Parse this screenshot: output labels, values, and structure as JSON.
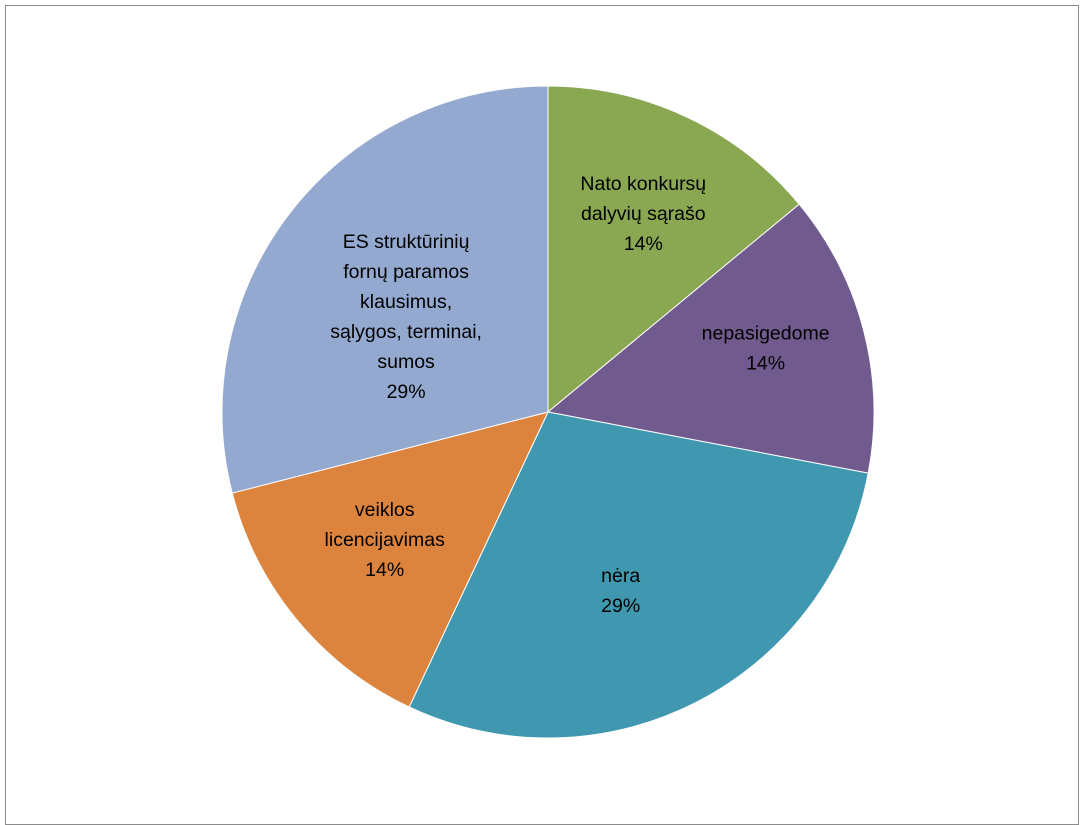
{
  "chart_data": {
    "type": "pie",
    "title": "",
    "start_angle_deg": 0,
    "direction": "clockwise",
    "slices": [
      {
        "label_lines": [
          "Nato konkursų",
          "dalyvių sąrašo",
          "14%"
        ],
        "value": 14,
        "color": "#8aa752"
      },
      {
        "label_lines": [
          "nepasigedome",
          "14%"
        ],
        "value": 14,
        "color": "#715a8e"
      },
      {
        "label_lines": [
          "nėra",
          "29%"
        ],
        "value": 29,
        "color": "#4098b0"
      },
      {
        "label_lines": [
          "veiklos",
          "licencijavimas",
          "14%"
        ],
        "value": 14,
        "color": "#dc843e"
      },
      {
        "label_lines": [
          "ES struktūrinių",
          "fornų paramos",
          "klausimus,",
          "sąlygos, terminai,",
          "sumos",
          "29%"
        ],
        "value": 29,
        "color": "#94a9cf"
      }
    ]
  }
}
